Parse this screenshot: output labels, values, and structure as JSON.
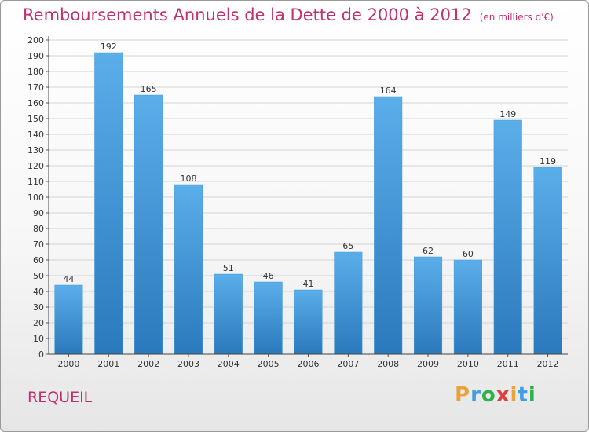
{
  "header": {
    "title": "Remboursements Annuels de la Dette de 2000 à 2012",
    "subtitle": "(en milliers d'€)"
  },
  "footer": {
    "commune": "REQUEIL",
    "brand": "Proxiti"
  },
  "colors": {
    "bar_top": "#5aaee9",
    "bar_bottom": "#2a79bd",
    "title": "#c0306e",
    "grid": "#d4d4d4"
  },
  "chart_data": {
    "type": "bar",
    "title": "Remboursements Annuels de la Dette de 2000 à 2012",
    "xlabel": "",
    "ylabel": "",
    "categories": [
      "2000",
      "2001",
      "2002",
      "2003",
      "2004",
      "2005",
      "2006",
      "2007",
      "2008",
      "2009",
      "2010",
      "2011",
      "2012"
    ],
    "values": [
      44,
      192,
      165,
      108,
      51,
      46,
      41,
      65,
      164,
      62,
      60,
      149,
      119
    ],
    "ylim": [
      0,
      200
    ],
    "ytick_step": 10,
    "grid": true,
    "data_labels": true
  }
}
